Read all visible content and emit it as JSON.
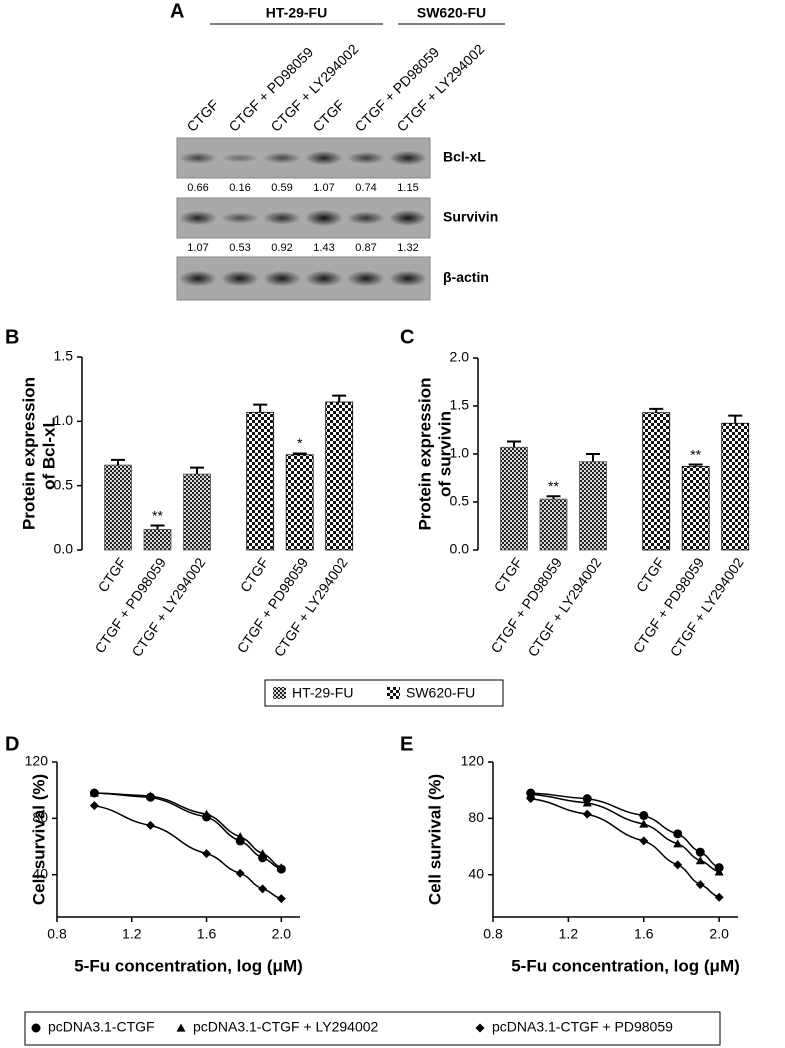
{
  "panel_a": {
    "label": "A",
    "groups": [
      "HT-29-FU",
      "SW620-FU"
    ],
    "lanes": [
      "CTGF",
      "CTGF + PD98059",
      "CTGF + LY294002",
      "CTGF",
      "CTGF + PD98059",
      "CTGF + LY294002"
    ],
    "blots": [
      {
        "name": "Bcl-xL",
        "values": [
          0.66,
          0.16,
          0.59,
          1.07,
          0.74,
          1.15
        ]
      },
      {
        "name": "Survivin",
        "values": [
          1.07,
          0.53,
          0.92,
          1.43,
          0.87,
          1.32
        ]
      },
      {
        "name": "β-actin"
      }
    ]
  },
  "chart_data": [
    {
      "type": "bar",
      "panel": "B",
      "ylabel": [
        "Protein expression",
        "of Bcl-xL"
      ],
      "categories": [
        "CTGF",
        "CTGF + PD98059",
        "CTGF + LY294002",
        "CTGF",
        "CTGF + PD98059",
        "CTGF + LY294002"
      ],
      "series": [
        {
          "name": "HT-29-FU",
          "color": "#555555",
          "values": [
            0.66,
            0.16,
            0.59,
            null,
            null,
            null
          ],
          "errors": [
            0.04,
            0.03,
            0.05,
            null,
            null,
            null
          ],
          "significance": [
            null,
            "**",
            null,
            null,
            null,
            null
          ]
        },
        {
          "name": "SW620-FU",
          "color": "#000000",
          "values": [
            null,
            null,
            null,
            1.07,
            0.74,
            1.15
          ],
          "errors": [
            null,
            null,
            null,
            0.06,
            0.01,
            0.05
          ],
          "significance": [
            null,
            null,
            null,
            null,
            "*",
            null
          ]
        }
      ],
      "ylim": [
        0,
        1.5
      ],
      "yticks": [
        {
          "value": 0,
          "label": "0.0"
        },
        0.5,
        {
          "value": 1,
          "label": "1.0"
        },
        1.5
      ]
    },
    {
      "type": "bar",
      "panel": "C",
      "ylabel": [
        "Protein expression",
        "of survivin"
      ],
      "categories": [
        "CTGF",
        "CTGF + PD98059",
        "CTGF + LY294002",
        "CTGF",
        "CTGF + PD98059",
        "CTGF + LY294002"
      ],
      "series": [
        {
          "name": "HT-29-FU",
          "color": "#555555",
          "values": [
            1.07,
            0.53,
            0.92,
            null,
            null,
            null
          ],
          "errors": [
            0.06,
            0.03,
            0.08,
            null,
            null,
            null
          ],
          "significance": [
            null,
            "**",
            null,
            null,
            null,
            null
          ]
        },
        {
          "name": "SW620-FU",
          "color": "#000000",
          "values": [
            null,
            null,
            null,
            1.43,
            0.87,
            1.32
          ],
          "errors": [
            null,
            null,
            null,
            0.04,
            0.02,
            0.08
          ],
          "significance": [
            null,
            null,
            null,
            null,
            "**",
            null
          ]
        }
      ],
      "ylim": [
        0,
        2
      ],
      "yticks": [
        {
          "value": 0,
          "label": "0.0"
        },
        0.5,
        {
          "value": 1,
          "label": "1.0"
        },
        1.5,
        {
          "value": 2,
          "label": "2.0"
        }
      ]
    },
    {
      "type": "line",
      "panel": "D",
      "xlabel": "5-Fu concentration, log (μM)",
      "ylabel": "Cell survival (%)",
      "x": [
        1.0,
        1.3,
        1.6,
        1.78,
        1.9,
        2.0
      ],
      "series": [
        {
          "name": "pcDNA3.1-CTGF",
          "marker": "circle",
          "color": "#000000",
          "values": [
            98,
            95,
            81,
            64,
            52,
            44
          ]
        },
        {
          "name": "pcDNA3.1-CTGF + LY294002",
          "marker": "triangle",
          "color": "#000000",
          "values": [
            98,
            96,
            83,
            67,
            55,
            45
          ]
        },
        {
          "name": "pcDNA3.1-CTGF + PD98059",
          "marker": "diamond",
          "color": "#000000",
          "values": [
            89,
            75,
            55,
            41,
            30,
            23
          ]
        }
      ],
      "xlim": [
        0.8,
        2.1
      ],
      "xticks": [
        0.8,
        1.2,
        1.6,
        {
          "value": 2,
          "label": "2.0"
        }
      ],
      "ylim": [
        10,
        120
      ],
      "yticks": [
        40,
        80,
        120
      ]
    },
    {
      "type": "line",
      "panel": "E",
      "xlabel": "5-Fu concentration, log (μM)",
      "ylabel": "Cell survival (%)",
      "x": [
        1.0,
        1.3,
        1.6,
        1.78,
        1.9,
        2.0
      ],
      "series": [
        {
          "name": "pcDNA3.1-CTGF",
          "marker": "circle",
          "color": "#000000",
          "values": [
            98,
            94,
            82,
            69,
            56,
            45
          ]
        },
        {
          "name": "pcDNA3.1-CTGF + LY294002",
          "marker": "triangle",
          "color": "#000000",
          "values": [
            97,
            91,
            76,
            62,
            50,
            42
          ]
        },
        {
          "name": "pcDNA3.1-CTGF + PD98059",
          "marker": "diamond",
          "color": "#000000",
          "values": [
            94,
            83,
            64,
            47,
            33,
            24
          ]
        }
      ],
      "xlim": [
        0.8,
        2.1
      ],
      "xticks": [
        0.8,
        1.2,
        1.6,
        {
          "value": 2,
          "label": "2.0"
        }
      ],
      "ylim": [
        10,
        120
      ],
      "yticks": [
        40,
        80,
        120
      ]
    }
  ]
}
